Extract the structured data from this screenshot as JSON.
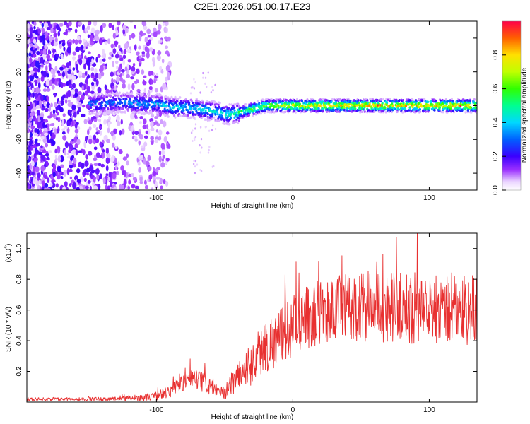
{
  "title": "C2E1.2026.051.00.17.E23",
  "chart_data": [
    {
      "type": "heatmap",
      "xlabel": "Height of straight line (km)",
      "ylabel": "Frequency (Hz)",
      "xlim": [
        -195,
        135
      ],
      "ylim": [
        -50,
        50
      ],
      "xticks": [
        -100,
        0,
        100
      ],
      "xtick_labels": [
        "-100",
        "0",
        "100"
      ],
      "yticks": [
        -40,
        -20,
        0,
        20,
        40
      ],
      "ytick_labels": [
        "-40",
        "-20",
        "0",
        "20",
        "40"
      ],
      "colorbar": {
        "label": "Normalized spectral amplitude",
        "range": [
          0,
          1
        ],
        "ticks": [
          0,
          0.2,
          0.4,
          0.6,
          0.8
        ],
        "tick_labels": [
          "0.0",
          "0.2",
          "0.4",
          "0.6",
          "0.8"
        ]
      },
      "trace": {
        "x": [
          -145,
          -125,
          -110,
          -100,
          -90,
          -80,
          -70,
          -60,
          -50,
          -45,
          -40,
          -30,
          -20,
          -10,
          0,
          20,
          40,
          60,
          80,
          100,
          120,
          135
        ],
        "frequency": [
          1,
          2,
          1,
          1,
          -1,
          -1,
          -2,
          -3,
          -5,
          -5,
          -4,
          -2,
          0,
          0,
          0,
          0,
          0,
          0,
          0,
          0,
          0,
          0
        ],
        "amplitude": [
          0.35,
          0.35,
          0.4,
          0.4,
          0.45,
          0.45,
          0.45,
          0.45,
          0.5,
          0.55,
          0.6,
          0.65,
          0.7,
          0.75,
          0.8,
          0.85,
          0.85,
          0.9,
          0.9,
          0.9,
          0.9,
          0.9
        ]
      }
    },
    {
      "type": "line",
      "xlabel": "Height of straight line (km)",
      "ylabel": "SNR (10 * v/v)",
      "scale_label": "(x10",
      "scale_exponent": "4",
      "scale_suffix": ")",
      "xlim": [
        -195,
        135
      ],
      "ylim": [
        0,
        1.1
      ],
      "xticks": [
        -100,
        0,
        100
      ],
      "xtick_labels": [
        "-100",
        "0",
        "100"
      ],
      "yticks": [
        0.2,
        0.4,
        0.6,
        0.8,
        1.0
      ],
      "ytick_labels": [
        "0.2",
        "0.4",
        "0.6",
        "0.8",
        "1.0"
      ],
      "color": "#e83030",
      "series": [
        {
          "name": "SNR",
          "x": [
            -195,
            -160,
            -130,
            -110,
            -100,
            -90,
            -80,
            -75,
            -70,
            -60,
            -55,
            -50,
            -45,
            -40,
            -30,
            -25,
            -20,
            -10,
            0,
            10,
            20,
            40,
            60,
            80,
            100,
            120,
            135
          ],
          "values": [
            0.02,
            0.02,
            0.02,
            0.03,
            0.04,
            0.07,
            0.13,
            0.15,
            0.14,
            0.1,
            0.06,
            0.06,
            0.12,
            0.18,
            0.25,
            0.32,
            0.36,
            0.42,
            0.5,
            0.55,
            0.58,
            0.62,
            0.62,
            0.62,
            0.6,
            0.62,
            0.6
          ],
          "amplitude": [
            0.01,
            0.01,
            0.015,
            0.02,
            0.03,
            0.04,
            0.06,
            0.07,
            0.07,
            0.06,
            0.04,
            0.04,
            0.08,
            0.1,
            0.14,
            0.16,
            0.18,
            0.18,
            0.2,
            0.2,
            0.22,
            0.22,
            0.23,
            0.23,
            0.24,
            0.24,
            0.24
          ]
        }
      ]
    }
  ]
}
